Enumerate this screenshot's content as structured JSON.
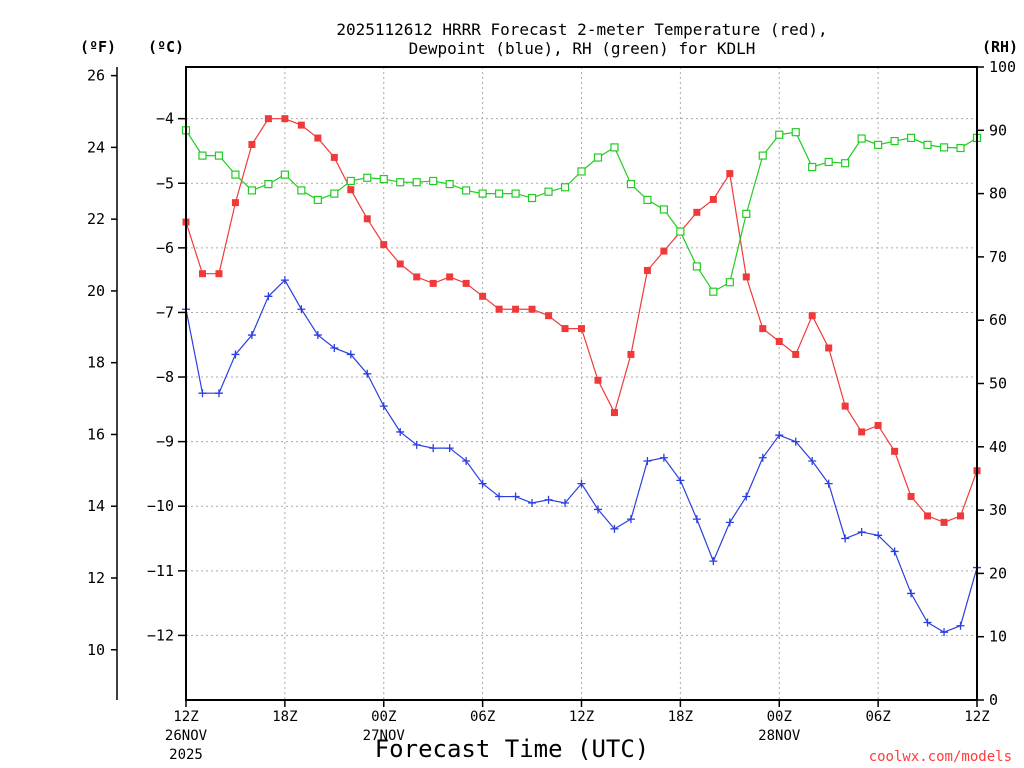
{
  "chart_data": {
    "type": "line",
    "title_line1": "2025112612 HRRR Forecast 2-meter Temperature (red),",
    "title_line2": "Dewpoint (blue), RH (green) for KDLH",
    "xlabel": "Forecast Time (UTC)",
    "credit": "coolwx.com/models",
    "units": {
      "fahrenheit": "(ºF)",
      "celsius": "(ºC)",
      "rh": "(RH)"
    },
    "x": [
      "2025-11-26 12Z",
      "13Z",
      "14Z",
      "15Z",
      "16Z",
      "17Z",
      "18Z",
      "19Z",
      "20Z",
      "21Z",
      "22Z",
      "23Z",
      "2025-11-27 00Z",
      "01Z",
      "02Z",
      "03Z",
      "04Z",
      "05Z",
      "06Z",
      "07Z",
      "08Z",
      "09Z",
      "10Z",
      "11Z",
      "12Z",
      "13Z",
      "14Z",
      "15Z",
      "16Z",
      "17Z",
      "18Z",
      "19Z",
      "20Z",
      "21Z",
      "22Z",
      "23Z",
      "2025-11-28 00Z",
      "01Z",
      "02Z",
      "03Z",
      "04Z",
      "05Z",
      "06Z",
      "07Z",
      "08Z",
      "09Z",
      "10Z",
      "11Z",
      "12Z"
    ],
    "x_ticks": [
      {
        "index": 0,
        "label": "12Z",
        "sub1": "26NOV",
        "sub2": "2025"
      },
      {
        "index": 6,
        "label": "18Z",
        "sub1": "",
        "sub2": ""
      },
      {
        "index": 12,
        "label": "00Z",
        "sub1": "27NOV",
        "sub2": ""
      },
      {
        "index": 18,
        "label": "06Z",
        "sub1": "",
        "sub2": ""
      },
      {
        "index": 24,
        "label": "12Z",
        "sub1": "",
        "sub2": ""
      },
      {
        "index": 30,
        "label": "18Z",
        "sub1": "",
        "sub2": ""
      },
      {
        "index": 36,
        "label": "00Z",
        "sub1": "28NOV",
        "sub2": ""
      },
      {
        "index": 42,
        "label": "06Z",
        "sub1": "",
        "sub2": ""
      },
      {
        "index": 48,
        "label": "12Z",
        "sub1": "",
        "sub2": ""
      }
    ],
    "celsius_axis": {
      "min": -13,
      "max": -3.2,
      "ticks": [
        -4,
        -5,
        -6,
        -7,
        -8,
        -9,
        -10,
        -11,
        -12
      ]
    },
    "fahrenheit_axis": {
      "ticks": [
        26,
        24,
        22,
        20,
        18,
        16,
        14,
        12,
        10
      ]
    },
    "rh_axis": {
      "min": 0,
      "max": 100,
      "ticks": [
        0,
        10,
        20,
        30,
        40,
        50,
        60,
        70,
        80,
        90,
        100
      ]
    },
    "grid": true,
    "colors": {
      "temperature": "#f03a3a",
      "dewpoint": "#2a3fe0",
      "rh": "#22cc22"
    },
    "series": [
      {
        "key": "temperature",
        "axis": "celsius",
        "values": [
          -5.6,
          -6.4,
          -6.4,
          -5.3,
          -4.4,
          -4.0,
          -4.0,
          -4.1,
          -4.3,
          -4.6,
          -5.1,
          -5.55,
          -5.95,
          -6.25,
          -6.45,
          -6.55,
          -6.45,
          -6.55,
          -6.75,
          -6.95,
          -6.95,
          -6.95,
          -7.05,
          -7.25,
          -7.25,
          -8.05,
          -8.55,
          -7.65,
          -6.35,
          -6.05,
          -5.75,
          -5.45,
          -5.25,
          -4.85,
          -6.45,
          -7.25,
          -7.45,
          -7.65,
          -7.05,
          -7.55,
          -8.45,
          -8.85,
          -8.75,
          -9.15,
          -9.85,
          -10.15,
          -10.25,
          -10.15,
          -9.45
        ]
      },
      {
        "key": "dewpoint",
        "axis": "celsius",
        "values": [
          -6.95,
          -8.25,
          -8.25,
          -7.65,
          -7.35,
          -6.75,
          -6.5,
          -6.95,
          -7.35,
          -7.55,
          -7.65,
          -7.95,
          -8.45,
          -8.85,
          -9.05,
          -9.1,
          -9.1,
          -9.3,
          -9.65,
          -9.85,
          -9.85,
          -9.95,
          -9.9,
          -9.95,
          -9.65,
          -10.05,
          -10.35,
          -10.2,
          -9.3,
          -9.25,
          -9.6,
          -10.2,
          -10.85,
          -10.25,
          -9.85,
          -9.25,
          -8.9,
          -9.0,
          -9.3,
          -9.65,
          -10.5,
          -10.4,
          -10.45,
          -10.7,
          -11.35,
          -11.8,
          -11.95,
          -11.85,
          -10.95
        ]
      },
      {
        "key": "rh",
        "axis": "rh",
        "values": [
          90,
          86,
          86,
          83,
          80.5,
          81.5,
          83,
          80.5,
          79,
          80,
          82,
          82.5,
          82.3,
          81.8,
          81.8,
          82,
          81.5,
          80.5,
          80,
          80,
          80,
          79.3,
          80.3,
          81,
          83.5,
          85.7,
          87.3,
          81.5,
          79,
          77.5,
          74,
          68.5,
          64.5,
          66,
          76.8,
          86,
          89.3,
          89.7,
          84.2,
          85,
          84.8,
          88.7,
          87.7,
          88.3,
          88.8,
          87.7,
          87.3,
          87.2,
          88.8
        ]
      }
    ]
  }
}
